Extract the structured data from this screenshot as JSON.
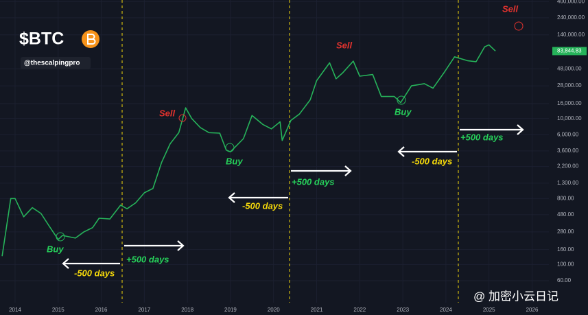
{
  "chart_data": {
    "type": "line",
    "title": "$BTC",
    "subtitle": "@thescalpingpro",
    "x": [
      2013.7,
      2013.9,
      2014.0,
      2014.2,
      2014.4,
      2014.6,
      2014.8,
      2015.0,
      2015.1,
      2015.4,
      2015.6,
      2015.8,
      2015.95,
      2016.2,
      2016.45,
      2016.6,
      2016.8,
      2017.0,
      2017.2,
      2017.4,
      2017.6,
      2017.8,
      2017.96,
      2018.1,
      2018.3,
      2018.5,
      2018.75,
      2018.9,
      2019.0,
      2019.3,
      2019.5,
      2019.75,
      2019.95,
      2020.15,
      2020.2,
      2020.4,
      2020.6,
      2020.85,
      2021.0,
      2021.3,
      2021.45,
      2021.6,
      2021.85,
      2022.0,
      2022.3,
      2022.5,
      2022.8,
      2022.95,
      2023.2,
      2023.5,
      2023.7,
      2023.95,
      2024.2,
      2024.5,
      2024.7,
      2024.9,
      2025.0,
      2025.15
    ],
    "series": [
      {
        "name": "BTC",
        "color": "#26b35a",
        "values": [
          130,
          800,
          800,
          450,
          600,
          500,
          330,
          220,
          250,
          230,
          280,
          320,
          430,
          420,
          650,
          580,
          700,
          960,
          1100,
          2500,
          4500,
          6400,
          14000,
          10000,
          7500,
          6400,
          6300,
          3700,
          3500,
          5300,
          11000,
          8300,
          7200,
          9000,
          5000,
          9400,
          11500,
          18000,
          33000,
          58000,
          35000,
          42000,
          61000,
          38000,
          40000,
          20000,
          20000,
          16500,
          28000,
          30000,
          26000,
          42000,
          70000,
          62000,
          60000,
          96000,
          102000,
          84000
        ]
      }
    ],
    "xlim": [
      2013.65,
      2026.39
    ],
    "xticks": [
      2014,
      2015,
      2016,
      2017,
      2018,
      2019,
      2020,
      2021,
      2022,
      2023,
      2024,
      2025,
      2026
    ],
    "ylim": [
      30,
      420000
    ],
    "log_scale": true,
    "yticks": [
      {
        "value": 60,
        "label": "60.00"
      },
      {
        "value": 100,
        "label": "100.00"
      },
      {
        "value": 160,
        "label": "160.00"
      },
      {
        "value": 280,
        "label": "280.00"
      },
      {
        "value": 480,
        "label": "480.00"
      },
      {
        "value": 800,
        "label": "800.00"
      },
      {
        "value": 1300,
        "label": "1,300.00"
      },
      {
        "value": 2200,
        "label": "2,200.00"
      },
      {
        "value": 3600,
        "label": "3,600.00"
      },
      {
        "value": 6000,
        "label": "6,000.00"
      },
      {
        "value": 10000,
        "label": "10,000.00"
      },
      {
        "value": 16000,
        "label": "16,000.00"
      },
      {
        "value": 28000,
        "label": "28,000.00"
      },
      {
        "value": 48000,
        "label": "48,000.00"
      },
      {
        "value": 140000,
        "label": "140,000.00"
      },
      {
        "value": 240000,
        "label": "240,000.00"
      },
      {
        "value": 400000,
        "label": "400,000.00"
      }
    ],
    "price_tag": {
      "value": 83844.83,
      "label": "83,844.83"
    },
    "annotations": [
      "Sell",
      "Sell",
      "Sell",
      "Buy",
      "Buy",
      "Buy",
      "-500 days",
      "-500 days",
      "-500 days",
      "+500 days",
      "+500 days",
      "+500 days"
    ],
    "watermark": "@ 加密小云日记"
  }
}
